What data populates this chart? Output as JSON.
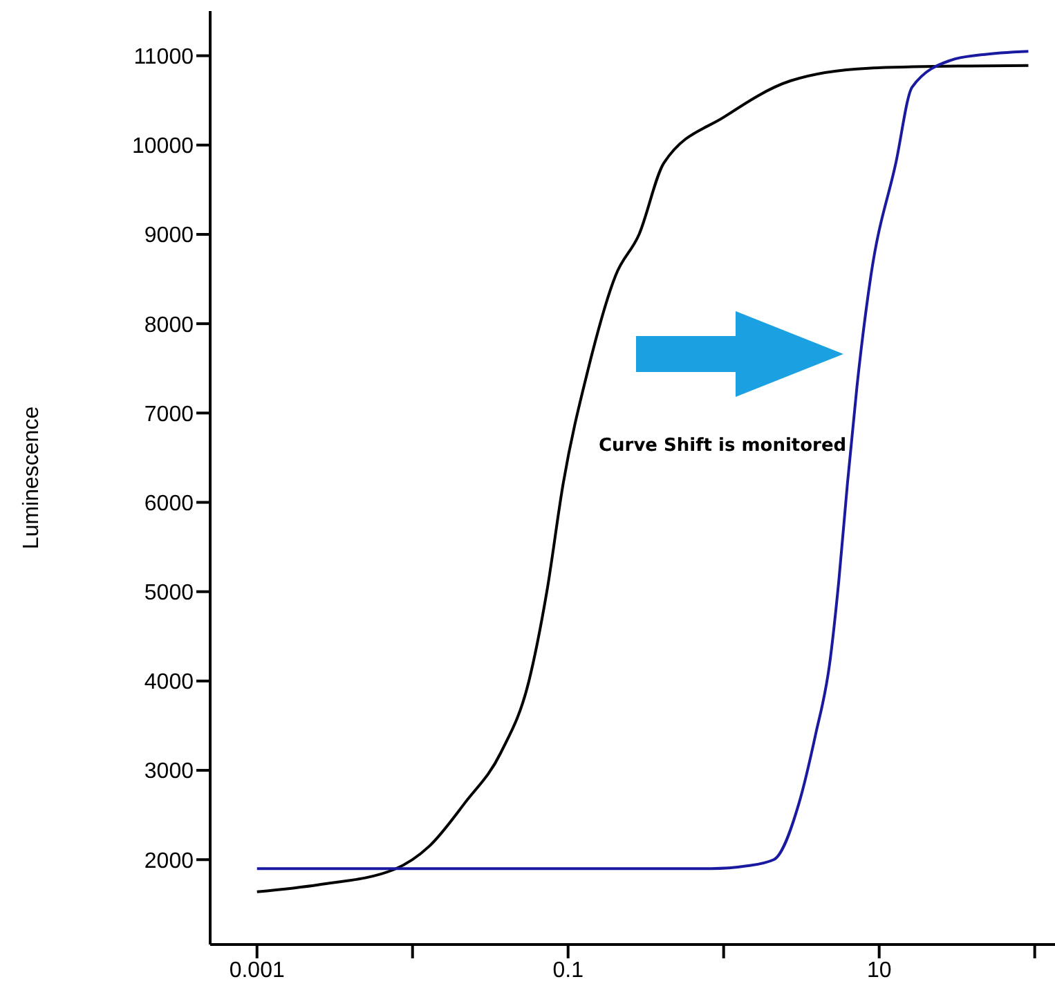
{
  "chart_data": {
    "type": "line",
    "ylabel": "Luminescence",
    "log": "x",
    "xlim": [
      0.0005,
      135
    ],
    "xticks": [
      0.001,
      {
        "value": 0.01,
        "label": null
      },
      0.1,
      {
        "value": 1,
        "label": null
      },
      10,
      {
        "value": 100,
        "label": null
      }
    ],
    "ylim": [
      1050,
      11500
    ],
    "yticks": [
      2000,
      3000,
      4000,
      5000,
      6000,
      7000,
      8000,
      9000,
      10000,
      11000
    ],
    "grid": false,
    "legend": false,
    "marker": "none",
    "line_style": "solid",
    "annotations": [
      "Curve Shift is monitored"
    ],
    "series": [
      {
        "color": "#000000",
        "x": [
          0.001,
          0.0025,
          0.0076,
          0.0128,
          0.0218,
          0.037,
          0.056,
          0.073,
          0.093,
          0.135,
          0.202,
          0.286,
          0.413,
          1.02,
          2.7,
          8.5,
          37,
          91
        ],
        "values": [
          1640,
          1720,
          1890,
          2150,
          2640,
          3200,
          4000,
          5000,
          6210,
          7500,
          8540,
          9000,
          9800,
          10320,
          10720,
          10860,
          10885,
          10890
        ]
      },
      {
        "color": "#1a1aa0",
        "x": [
          0.001,
          0.83,
          1.41,
          2.1,
          3.06,
          3.9,
          4.8,
          5.5,
          6.25,
          7.2,
          8.85,
          12.8,
          16.3,
          28.9,
          45,
          91
        ],
        "values": [
          1900,
          1900,
          1930,
          2000,
          2640,
          3400,
          4190,
          5120,
          6210,
          7300,
          8540,
          9800,
          10650,
          10950,
          11010,
          11050
        ]
      }
    ]
  }
}
